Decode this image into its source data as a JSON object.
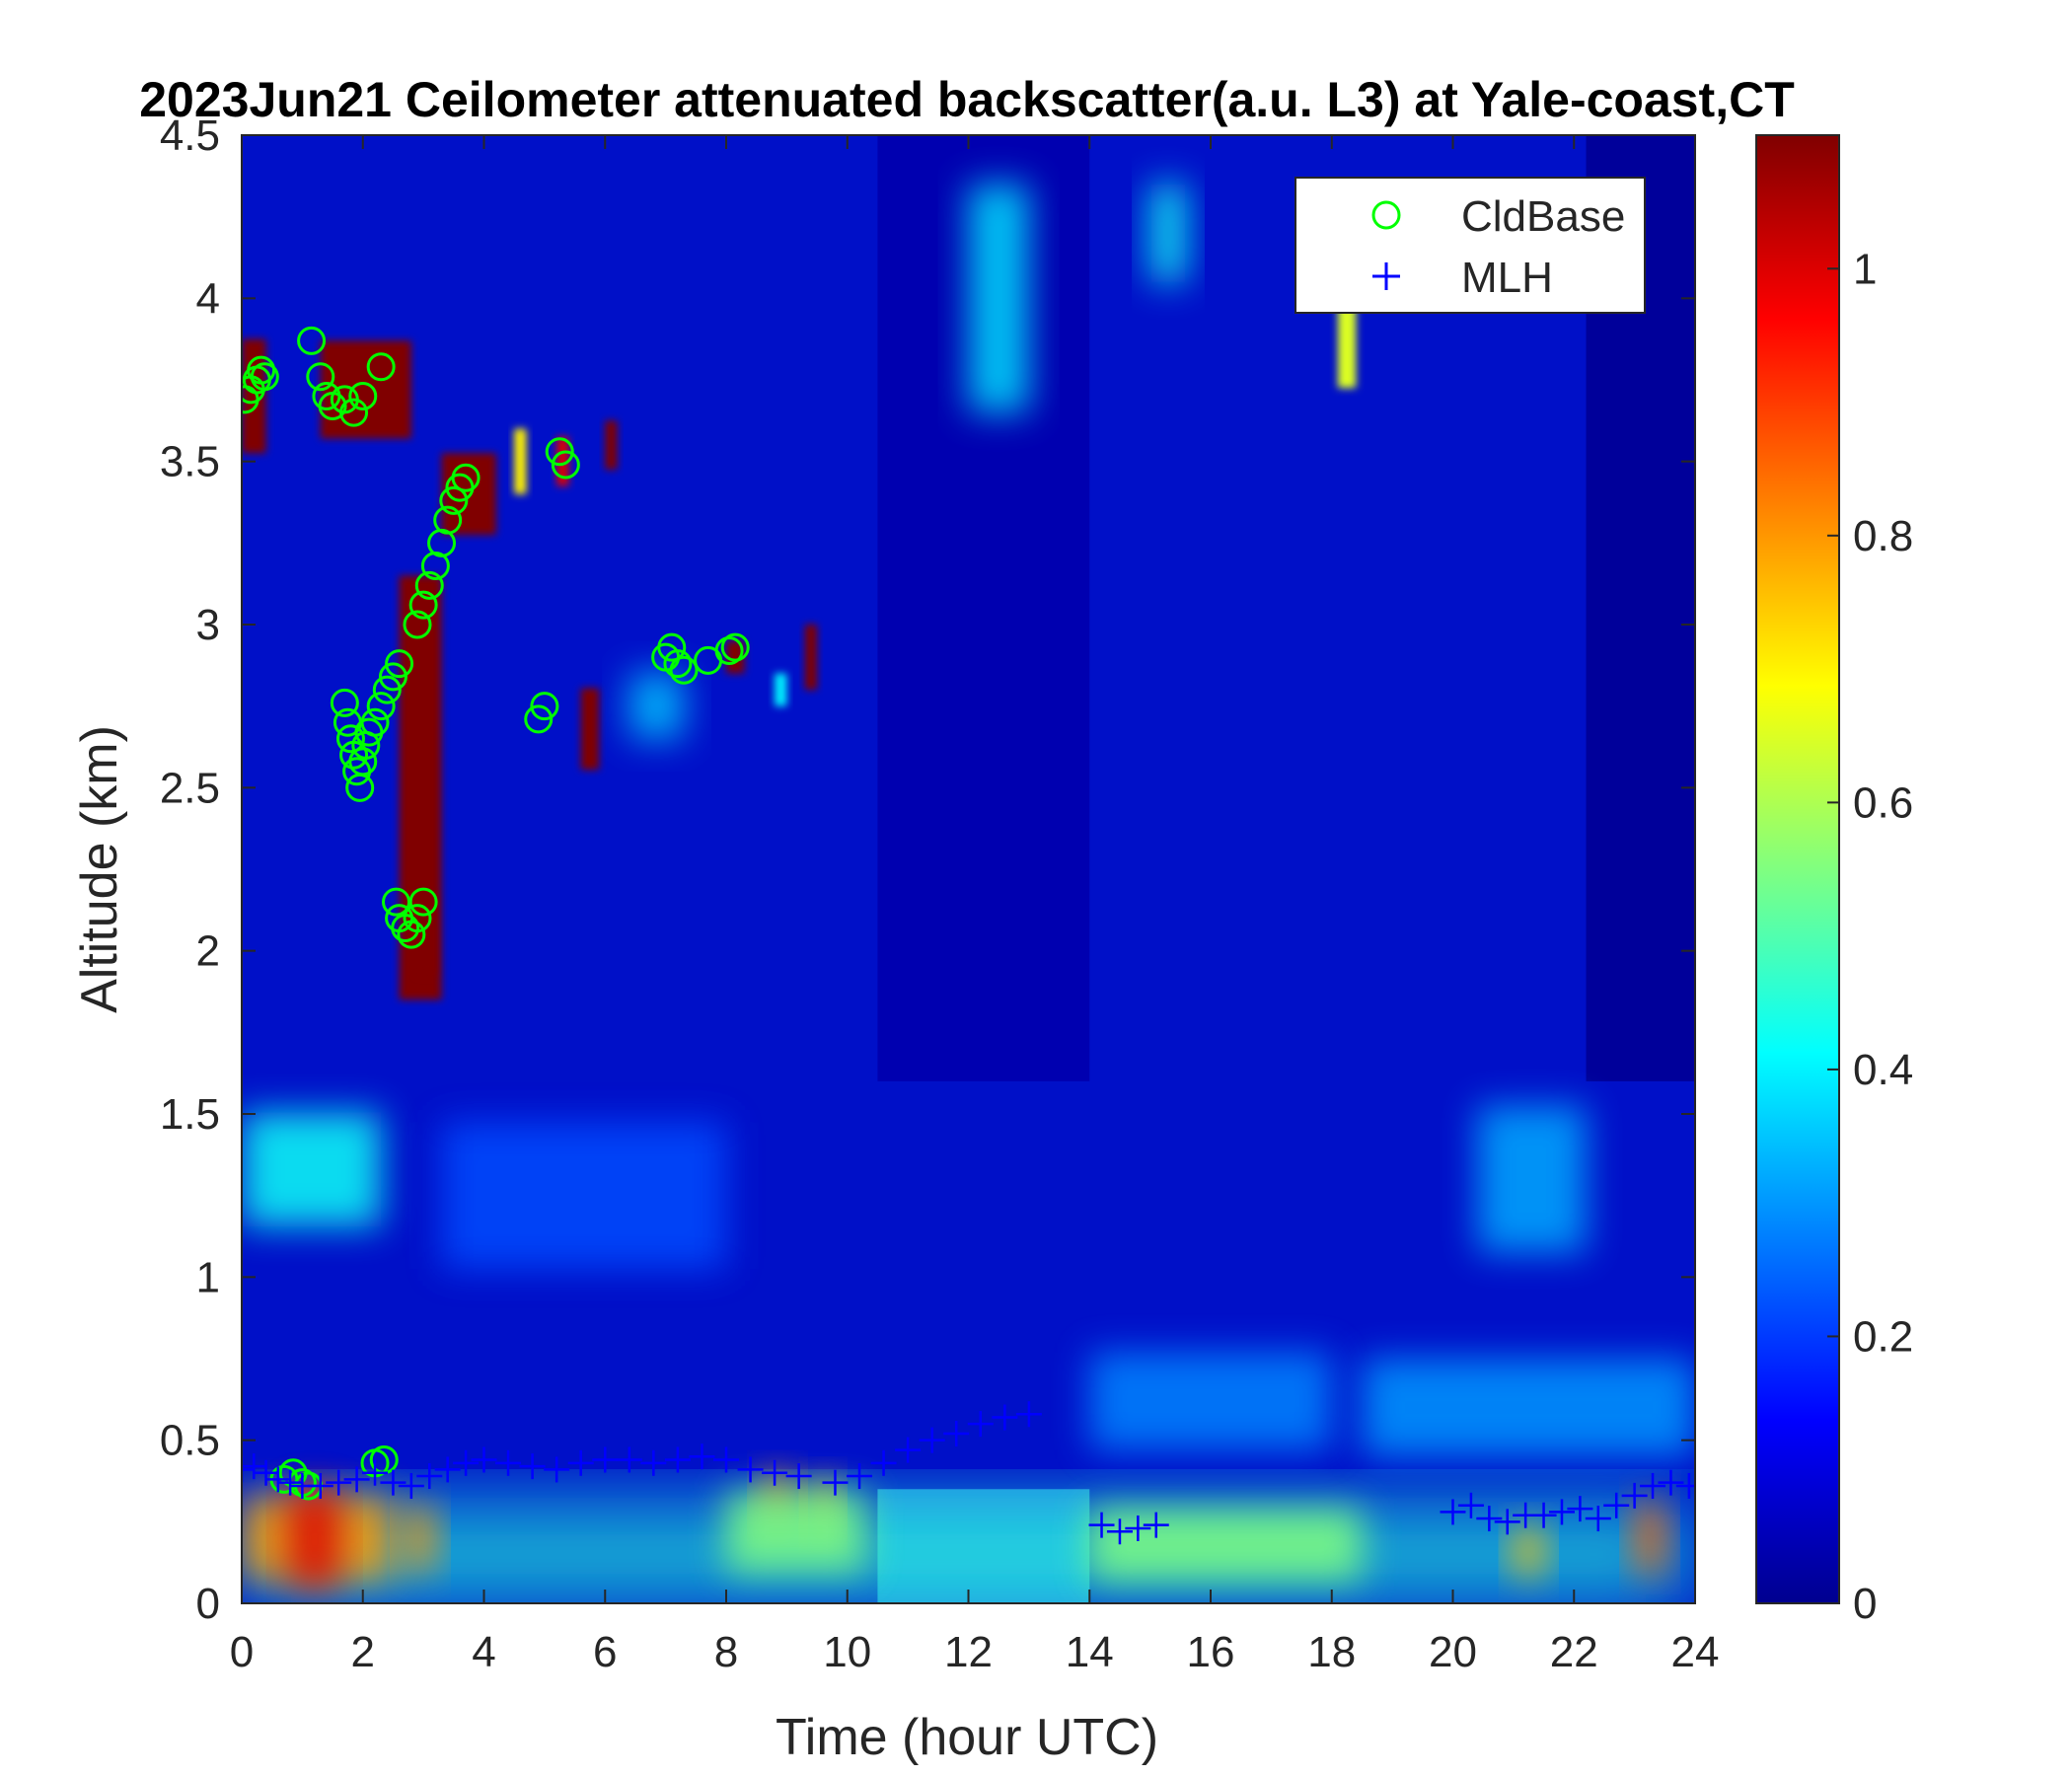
{
  "chart_data": {
    "type": "heatmap",
    "title": "2023Jun21 Ceilometer attenuated backscatter(a.u. L3) at Yale-coast,CT",
    "xlabel": "Time (hour UTC)",
    "ylabel": "Altitude (km)",
    "xlim": [
      0,
      24
    ],
    "ylim": [
      0,
      4.5
    ],
    "x_ticks": [
      "0",
      "2",
      "4",
      "6",
      "8",
      "10",
      "12",
      "14",
      "16",
      "18",
      "20",
      "22",
      "24"
    ],
    "y_ticks": [
      "0",
      "0.5",
      "1",
      "1.5",
      "2",
      "2.5",
      "3",
      "3.5",
      "4",
      "4.5"
    ],
    "colorbar": {
      "colormap": "jet",
      "range": [
        0,
        1.1
      ],
      "ticks": [
        "0",
        "0.2",
        "0.4",
        "0.6",
        "0.8",
        "1"
      ]
    },
    "legend": {
      "position": "top-right",
      "entries": [
        {
          "label": "CldBase",
          "marker": "circle",
          "color": "#00ff00"
        },
        {
          "label": "MLH",
          "marker": "plus",
          "color": "#0000ff"
        }
      ]
    },
    "series": [
      {
        "name": "CldBase",
        "points": [
          [
            0.05,
            3.69
          ],
          [
            0.15,
            3.72
          ],
          [
            0.25,
            3.75
          ],
          [
            0.32,
            3.78
          ],
          [
            0.38,
            3.76
          ],
          [
            1.15,
            3.87
          ],
          [
            1.3,
            3.76
          ],
          [
            1.4,
            3.7
          ],
          [
            1.5,
            3.67
          ],
          [
            1.7,
            3.69
          ],
          [
            1.85,
            3.65
          ],
          [
            2.0,
            3.7
          ],
          [
            2.3,
            3.79
          ],
          [
            1.7,
            2.76
          ],
          [
            1.75,
            2.7
          ],
          [
            1.8,
            2.65
          ],
          [
            1.85,
            2.6
          ],
          [
            1.9,
            2.55
          ],
          [
            1.95,
            2.5
          ],
          [
            2.0,
            2.58
          ],
          [
            2.05,
            2.63
          ],
          [
            2.1,
            2.67
          ],
          [
            2.2,
            2.7
          ],
          [
            2.3,
            2.75
          ],
          [
            2.4,
            2.8
          ],
          [
            2.5,
            2.84
          ],
          [
            2.6,
            2.88
          ],
          [
            2.55,
            2.15
          ],
          [
            2.6,
            2.1
          ],
          [
            2.7,
            2.07
          ],
          [
            2.8,
            2.05
          ],
          [
            2.9,
            2.1
          ],
          [
            3.0,
            2.15
          ],
          [
            2.9,
            3.0
          ],
          [
            3.0,
            3.06
          ],
          [
            3.1,
            3.12
          ],
          [
            3.2,
            3.18
          ],
          [
            3.3,
            3.25
          ],
          [
            3.4,
            3.32
          ],
          [
            3.5,
            3.38
          ],
          [
            3.6,
            3.42
          ],
          [
            3.7,
            3.45
          ],
          [
            4.9,
            2.71
          ],
          [
            5.0,
            2.75
          ],
          [
            5.25,
            3.53
          ],
          [
            5.35,
            3.49
          ],
          [
            7.0,
            2.9
          ],
          [
            7.1,
            2.93
          ],
          [
            7.2,
            2.88
          ],
          [
            7.3,
            2.86
          ],
          [
            7.7,
            2.89
          ],
          [
            8.05,
            2.92
          ],
          [
            8.15,
            2.93
          ],
          [
            0.7,
            0.38
          ],
          [
            0.85,
            0.4
          ],
          [
            1.0,
            0.37
          ],
          [
            1.1,
            0.36
          ],
          [
            2.2,
            0.43
          ],
          [
            2.35,
            0.44
          ]
        ]
      },
      {
        "name": "MLH",
        "points": [
          [
            0.0,
            0.41
          ],
          [
            0.2,
            0.42
          ],
          [
            0.4,
            0.4
          ],
          [
            0.6,
            0.38
          ],
          [
            0.8,
            0.37
          ],
          [
            1.0,
            0.36
          ],
          [
            1.3,
            0.36
          ],
          [
            1.6,
            0.37
          ],
          [
            1.9,
            0.38
          ],
          [
            2.2,
            0.4
          ],
          [
            2.5,
            0.37
          ],
          [
            2.8,
            0.36
          ],
          [
            3.1,
            0.39
          ],
          [
            3.4,
            0.41
          ],
          [
            3.7,
            0.43
          ],
          [
            4.0,
            0.44
          ],
          [
            4.4,
            0.43
          ],
          [
            4.8,
            0.42
          ],
          [
            5.2,
            0.41
          ],
          [
            5.6,
            0.43
          ],
          [
            6.0,
            0.44
          ],
          [
            6.4,
            0.44
          ],
          [
            6.8,
            0.43
          ],
          [
            7.2,
            0.44
          ],
          [
            7.6,
            0.45
          ],
          [
            8.0,
            0.44
          ],
          [
            8.4,
            0.41
          ],
          [
            8.8,
            0.4
          ],
          [
            9.2,
            0.39
          ],
          [
            9.8,
            0.37
          ],
          [
            10.2,
            0.39
          ],
          [
            10.6,
            0.43
          ],
          [
            11.0,
            0.47
          ],
          [
            11.4,
            0.5
          ],
          [
            11.8,
            0.52
          ],
          [
            12.2,
            0.55
          ],
          [
            12.6,
            0.57
          ],
          [
            13.0,
            0.58
          ],
          [
            14.2,
            0.24
          ],
          [
            14.5,
            0.22
          ],
          [
            14.8,
            0.23
          ],
          [
            15.1,
            0.24
          ],
          [
            20.0,
            0.28
          ],
          [
            20.3,
            0.3
          ],
          [
            20.6,
            0.26
          ],
          [
            20.9,
            0.25
          ],
          [
            21.2,
            0.27
          ],
          [
            21.5,
            0.27
          ],
          [
            21.8,
            0.28
          ],
          [
            22.1,
            0.29
          ],
          [
            22.4,
            0.26
          ],
          [
            22.7,
            0.3
          ],
          [
            23.0,
            0.33
          ],
          [
            23.3,
            0.36
          ],
          [
            23.6,
            0.37
          ],
          [
            23.9,
            0.36
          ]
        ]
      }
    ],
    "features": [
      {
        "t0": 0,
        "t1": 24,
        "z": 0.15,
        "width_h": 24,
        "height_km": 0.26,
        "value": 0.45
      },
      {
        "t0": 0,
        "t1": 2.5,
        "z": 0.2,
        "width_h": 2.5,
        "height_km": 0.26,
        "value": 0.8
      },
      {
        "t0": 0.8,
        "t1": 1.6,
        "z": 0.2,
        "width_h": 0.8,
        "height_km": 0.3,
        "value": 1.0
      },
      {
        "t0": 2.7,
        "t1": 3.2,
        "z": 0.2,
        "width_h": 0.5,
        "height_km": 0.2,
        "value": 0.8
      },
      {
        "t0": 8.6,
        "t1": 9.1,
        "z": 0.32,
        "width_h": 0.5,
        "height_km": 0.15,
        "value": 0.82
      },
      {
        "t0": 9.4,
        "t1": 9.8,
        "z": 0.3,
        "width_h": 0.4,
        "height_km": 0.15,
        "value": 0.8
      },
      {
        "t0": 8.0,
        "t1": 10.3,
        "z": 0.22,
        "width_h": 2.3,
        "height_km": 0.25,
        "value": 0.55
      },
      {
        "t0": 14,
        "t1": 18.5,
        "z": 0.18,
        "width_h": 4.5,
        "height_km": 0.22,
        "value": 0.55
      },
      {
        "t0": 21,
        "t1": 21.5,
        "z": 0.16,
        "width_h": 0.5,
        "height_km": 0.15,
        "value": 0.75
      },
      {
        "t0": 23,
        "t1": 23.5,
        "z": 0.2,
        "width_h": 0.5,
        "height_km": 0.22,
        "value": 0.85
      },
      {
        "t0": 0,
        "t1": 2.3,
        "z": 1.33,
        "width_h": 2.3,
        "height_km": 0.35,
        "value": 0.42
      },
      {
        "t0": 20.4,
        "t1": 22.2,
        "z": 1.3,
        "width_h": 1.8,
        "height_km": 0.45,
        "value": 0.32
      },
      {
        "t0": 14,
        "t1": 18,
        "z": 0.62,
        "width_h": 4,
        "height_km": 0.3,
        "value": 0.28
      },
      {
        "t0": 18.5,
        "t1": 24,
        "z": 0.6,
        "width_h": 5.5,
        "height_km": 0.3,
        "value": 0.3
      },
      {
        "t0": 3.3,
        "t1": 8,
        "z": 1.25,
        "width_h": 4.7,
        "height_km": 0.45,
        "value": 0.22
      },
      {
        "t0": 12,
        "t1": 13,
        "z": 4.0,
        "width_h": 1,
        "height_km": 0.7,
        "value": 0.38
      },
      {
        "t0": 15,
        "t1": 15.6,
        "z": 4.2,
        "width_h": 0.6,
        "height_km": 0.3,
        "value": 0.42
      },
      {
        "t0": 18.1,
        "t1": 18.4,
        "z": 3.85,
        "width_h": 0.3,
        "height_km": 0.25,
        "value": 0.65
      },
      {
        "t0": 0,
        "t1": 0.4,
        "z": 3.7,
        "width_h": 0.4,
        "height_km": 0.35,
        "value": 1.1
      },
      {
        "t0": 1.3,
        "t1": 2.8,
        "z": 3.72,
        "width_h": 1.5,
        "height_km": 0.3,
        "value": 1.1
      },
      {
        "t0": 2.6,
        "t1": 3.3,
        "z": 2.5,
        "width_h": 0.7,
        "height_km": 1.3,
        "value": 1.1
      },
      {
        "t0": 3.3,
        "t1": 4.2,
        "z": 3.4,
        "width_h": 0.9,
        "height_km": 0.25,
        "value": 1.1
      },
      {
        "t0": 4.5,
        "t1": 4.7,
        "z": 3.5,
        "width_h": 0.2,
        "height_km": 0.2,
        "value": 0.7
      },
      {
        "t0": 5.2,
        "t1": 5.4,
        "z": 3.5,
        "width_h": 0.2,
        "height_km": 0.15,
        "value": 1.0
      },
      {
        "t0": 6.0,
        "t1": 6.2,
        "z": 3.55,
        "width_h": 0.2,
        "height_km": 0.15,
        "value": 1.1
      },
      {
        "t0": 5.6,
        "t1": 5.9,
        "z": 2.68,
        "width_h": 0.3,
        "height_km": 0.25,
        "value": 1.1
      },
      {
        "t0": 6.4,
        "t1": 7.3,
        "z": 2.75,
        "width_h": 0.9,
        "height_km": 0.2,
        "value": 0.35
      },
      {
        "t0": 8.0,
        "t1": 8.3,
        "z": 2.9,
        "width_h": 0.3,
        "height_km": 0.1,
        "value": 1.1
      },
      {
        "t0": 8.8,
        "t1": 9.0,
        "z": 2.8,
        "width_h": 0.2,
        "height_km": 0.1,
        "value": 0.4
      },
      {
        "t0": 9.3,
        "t1": 9.5,
        "z": 2.9,
        "width_h": 0.2,
        "height_km": 0.2,
        "value": 1.1
      },
      {
        "t0": 2.9,
        "t1": 3.2,
        "z": 2.05,
        "width_h": 0.3,
        "height_km": 0.25,
        "value": 1.1
      }
    ]
  }
}
